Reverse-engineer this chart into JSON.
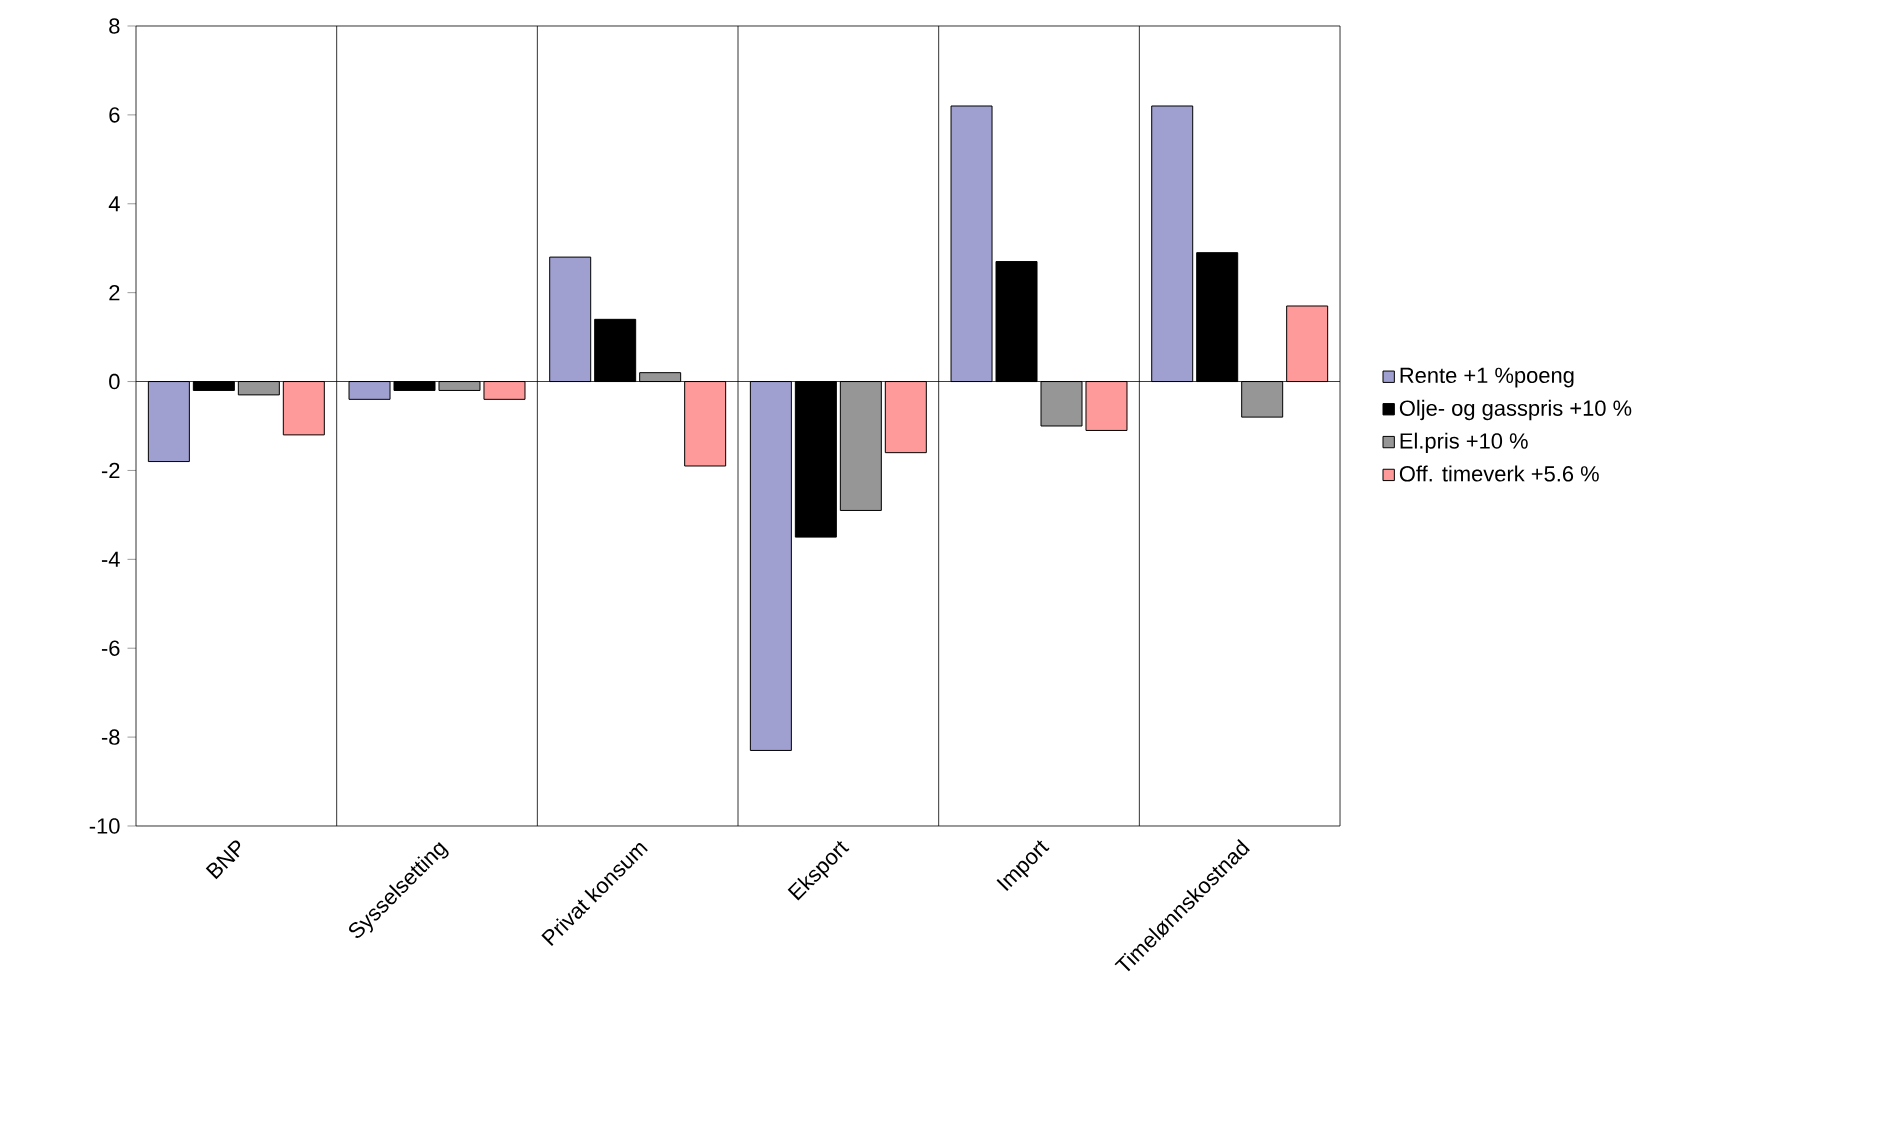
{
  "chart_data": {
    "type": "bar",
    "categories": [
      "BNP",
      "Sysselsetting",
      "Privat konsum",
      "Eksport",
      "Import",
      "Timelønnskostnad"
    ],
    "series": [
      {
        "name": "Rente +1 %poeng",
        "color": "#9f9fd0",
        "values": [
          -1.8,
          -0.4,
          2.8,
          -8.3,
          6.2,
          6.2
        ]
      },
      {
        "name": "Olje- og gasspris +10 %",
        "color": "#000000",
        "values": [
          -0.2,
          -0.2,
          1.4,
          -3.5,
          2.7,
          2.9
        ]
      },
      {
        "name": "El.pris +10 %",
        "color": "#969696",
        "values": [
          -0.3,
          -0.2,
          0.2,
          -2.9,
          -1.0,
          -0.8
        ]
      },
      {
        "name": "Off. timeverk +5.6 %",
        "color": "#ff9a9a",
        "values": [
          -1.2,
          -0.4,
          -1.9,
          -1.6,
          -1.1,
          1.7
        ]
      }
    ],
    "ylim": [
      -10,
      8
    ],
    "yticks": [
      -10,
      -8,
      -6,
      -4,
      -2,
      0,
      2,
      4,
      6,
      8
    ],
    "ref_lines": [
      {
        "axis": "y",
        "value": 0,
        "color": "#000000"
      }
    ],
    "grid": "x",
    "legend": "right"
  }
}
